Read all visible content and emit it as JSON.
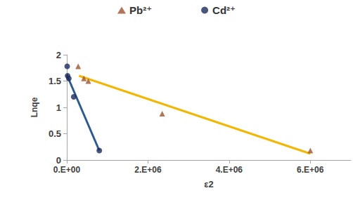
{
  "chart_data": {
    "type": "scatter",
    "x_label": "ε2",
    "y_label": "Lnqe",
    "xlim": [
      0,
      7000000
    ],
    "xticks": [
      {
        "value": 0,
        "label": "0.E+00"
      },
      {
        "value": 2000000,
        "label": "2.E+06"
      },
      {
        "value": 4000000,
        "label": "4.E+06"
      },
      {
        "value": 6000000,
        "label": "6.E+06"
      }
    ],
    "ylim": [
      0,
      2
    ],
    "yticks": [
      0,
      0.5,
      1,
      1.5,
      2
    ],
    "grid": false,
    "legend": "top",
    "series": [
      {
        "name": "Pb²⁺",
        "color": "#a0522d",
        "marker": "triangle",
        "x": [
          280000,
          420000,
          530000,
          2350000,
          6000000
        ],
        "values": [
          1.78,
          1.55,
          1.5,
          0.88,
          0.18
        ],
        "fit": {
          "color": "#f2b705",
          "x": [
            300000,
            6000000
          ],
          "values": [
            1.6,
            0.12
          ]
        }
      },
      {
        "name": "Cd²⁺",
        "color": "#1b2a5c",
        "marker": "circle",
        "x": [
          10000,
          20000,
          50000,
          170000,
          800000
        ],
        "values": [
          1.78,
          1.6,
          1.55,
          1.2,
          0.18
        ],
        "fit": {
          "color": "#2e5b8e",
          "x": [
            0,
            800000
          ],
          "values": [
            1.62,
            0.18
          ]
        }
      }
    ]
  }
}
